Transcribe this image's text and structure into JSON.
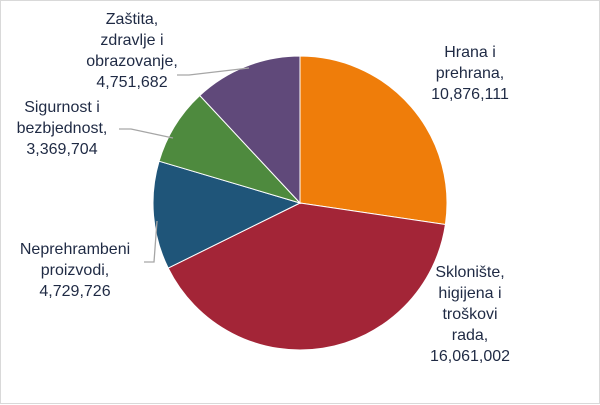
{
  "chart_data": {
    "type": "pie",
    "slices": [
      {
        "label_lines": [
          "Hrana i",
          "prehrana,",
          "10,876,111"
        ],
        "value": 10876111,
        "color": "#ef7d0a"
      },
      {
        "label_lines": [
          "Sklonište,",
          "higijena i",
          "troškovi",
          "rada,",
          "16,061,002"
        ],
        "value": 16061002,
        "color": "#a32537"
      },
      {
        "label_lines": [
          "Neprehrambeni",
          "proizvodi,",
          "4,729,726"
        ],
        "value": 4729726,
        "color": "#1f5579"
      },
      {
        "label_lines": [
          "Sigurnost i",
          "bezbjednost,",
          "3,369,704"
        ],
        "value": 3369704,
        "color": "#4e8a3e"
      },
      {
        "label_lines": [
          "Zaštita,",
          "zdravlje i",
          "obrazovanje,",
          "4,751,682"
        ],
        "value": 4751682,
        "color": "#60497a"
      }
    ],
    "start": "top, clockwise",
    "legend": "none",
    "leader_line_color": "#a6a6a6"
  }
}
